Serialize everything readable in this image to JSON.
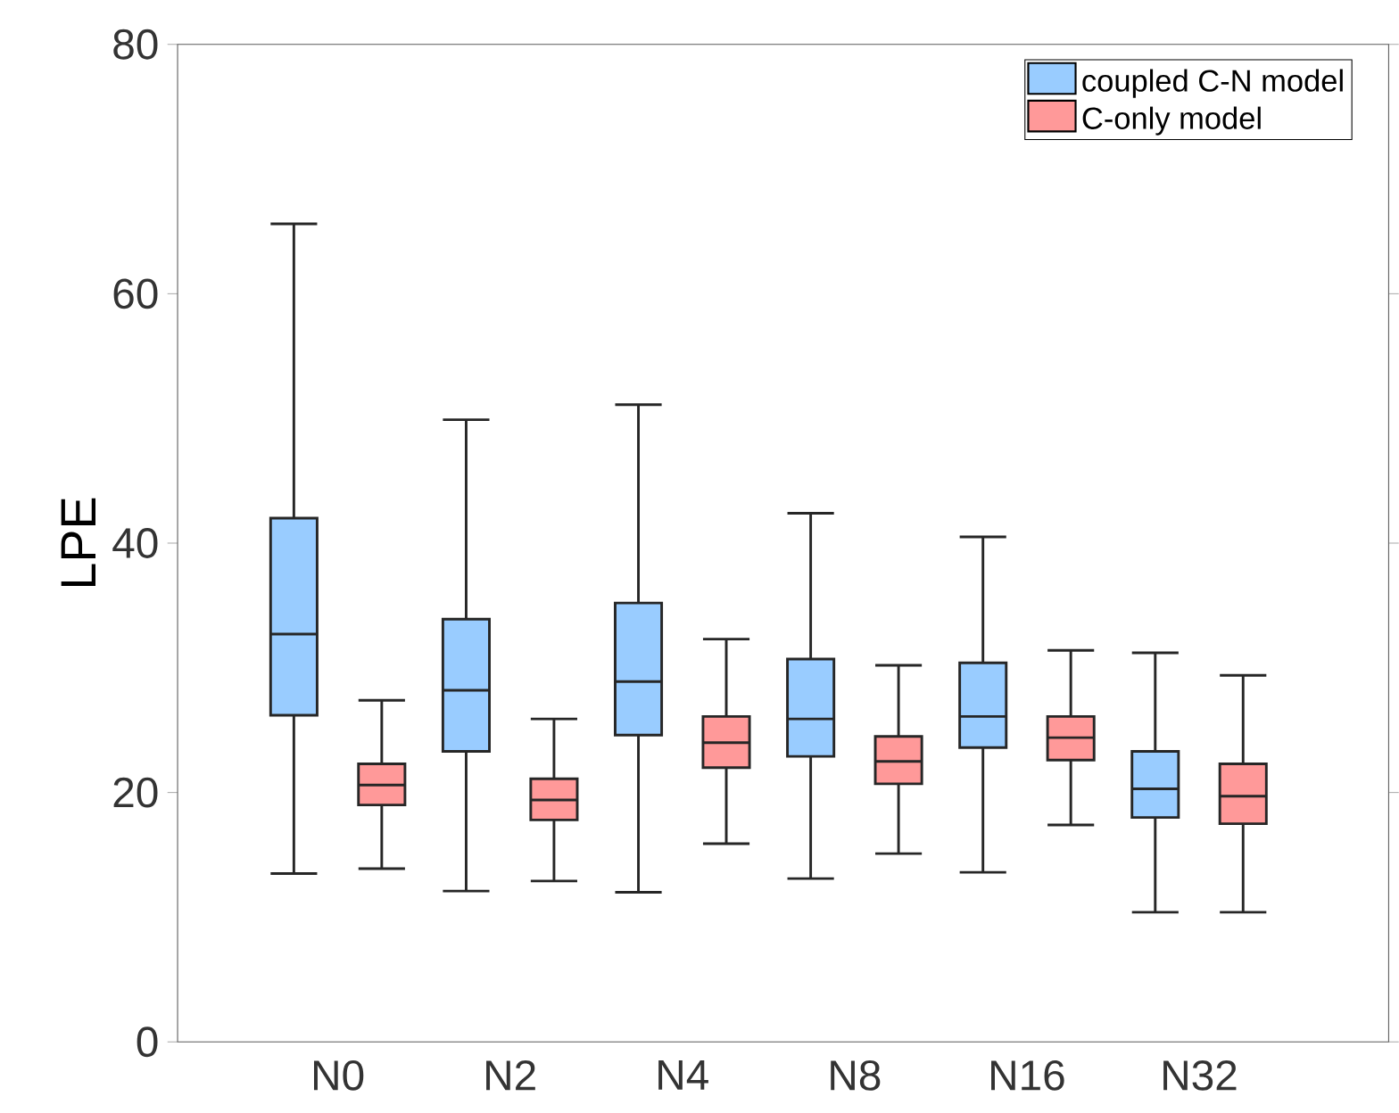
{
  "chart_data": {
    "type": "box",
    "ylabel": "LPE",
    "categories": [
      "N0",
      "N2",
      "N4",
      "N8",
      "N16",
      "N32"
    ],
    "ylim": [
      0,
      80
    ],
    "yticks": [
      0,
      20,
      40,
      60,
      80
    ],
    "legend": "top right",
    "series": [
      {
        "name": "coupled C-N model",
        "color": "#99ccff",
        "boxes": [
          {
            "low": 13.5,
            "q1": 26.2,
            "median": 32.7,
            "q3": 42.0,
            "high": 65.6
          },
          {
            "low": 12.1,
            "q1": 23.3,
            "median": 28.2,
            "q3": 33.9,
            "high": 49.9
          },
          {
            "low": 12.0,
            "q1": 24.6,
            "median": 28.9,
            "q3": 35.2,
            "high": 51.1
          },
          {
            "low": 13.1,
            "q1": 22.9,
            "median": 25.9,
            "q3": 30.7,
            "high": 42.4
          },
          {
            "low": 13.6,
            "q1": 23.6,
            "median": 26.1,
            "q3": 30.4,
            "high": 40.5
          },
          {
            "low": 10.4,
            "q1": 18.0,
            "median": 20.3,
            "q3": 23.3,
            "high": 31.2
          }
        ]
      },
      {
        "name": "C-only model",
        "color": "#ff9999",
        "boxes": [
          {
            "low": 13.9,
            "q1": 19.0,
            "median": 20.6,
            "q3": 22.3,
            "high": 27.4
          },
          {
            "low": 12.9,
            "q1": 17.8,
            "median": 19.4,
            "q3": 21.1,
            "high": 25.9
          },
          {
            "low": 15.9,
            "q1": 22.0,
            "median": 24.0,
            "q3": 26.1,
            "high": 32.3
          },
          {
            "low": 15.1,
            "q1": 20.7,
            "median": 22.5,
            "q3": 24.5,
            "high": 30.2
          },
          {
            "low": 17.4,
            "q1": 22.6,
            "median": 24.4,
            "q3": 26.1,
            "high": 31.4
          },
          {
            "low": 10.4,
            "q1": 17.5,
            "median": 19.7,
            "q3": 22.3,
            "high": 29.4
          }
        ]
      }
    ]
  }
}
